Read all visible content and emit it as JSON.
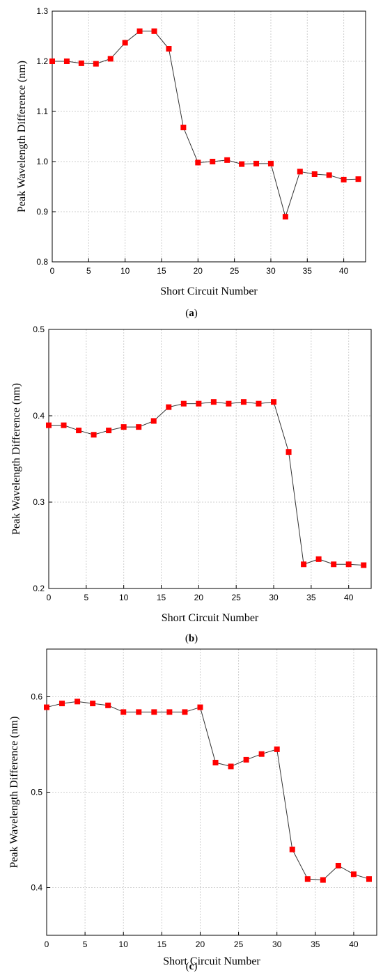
{
  "chart_data": [
    {
      "type": "line",
      "caption": {
        "open": "(",
        "letter": "a",
        "close": ")"
      },
      "xlabel": "Short Circuit Number",
      "ylabel": "Peak Wavelength Difference (nm)",
      "xlim": [
        0,
        43
      ],
      "ylim": [
        0.8,
        1.3
      ],
      "xticks": [
        0,
        5,
        10,
        15,
        20,
        25,
        30,
        35,
        40
      ],
      "yticks": [
        0.8,
        0.9,
        1.0,
        1.1,
        1.2,
        1.3
      ],
      "ytick_decimals": 1,
      "grid": true,
      "series": [
        {
          "x": [
            0,
            2,
            4,
            6,
            8,
            10,
            12,
            14,
            16,
            18,
            20,
            22,
            24,
            26,
            28,
            30,
            32,
            34,
            36,
            38,
            40,
            42
          ],
          "values": [
            1.2,
            1.2,
            1.196,
            1.195,
            1.205,
            1.237,
            1.26,
            1.26,
            1.225,
            1.068,
            0.998,
            1.0,
            1.003,
            0.995,
            0.996,
            0.996,
            0.89,
            0.98,
            0.975,
            0.973,
            0.964,
            0.965
          ]
        }
      ]
    },
    {
      "type": "line",
      "caption": {
        "open": "(",
        "letter": "b",
        "close": ")"
      },
      "xlabel": "Short Circuit Number",
      "ylabel": "Peak Wavelength Difference (nm)",
      "xlim": [
        0,
        43
      ],
      "ylim": [
        0.2,
        0.5
      ],
      "xticks": [
        0,
        5,
        10,
        15,
        20,
        25,
        30,
        35,
        40
      ],
      "yticks": [
        0.2,
        0.3,
        0.4,
        0.5
      ],
      "ytick_decimals": 1,
      "grid": true,
      "series": [
        {
          "x": [
            0,
            2,
            4,
            6,
            8,
            10,
            12,
            14,
            16,
            18,
            20,
            22,
            24,
            26,
            28,
            30,
            32,
            34,
            36,
            38,
            40,
            42
          ],
          "values": [
            0.389,
            0.389,
            0.383,
            0.378,
            0.383,
            0.387,
            0.387,
            0.394,
            0.41,
            0.414,
            0.414,
            0.416,
            0.414,
            0.416,
            0.414,
            0.416,
            0.358,
            0.228,
            0.234,
            0.228,
            0.228,
            0.227
          ]
        }
      ]
    },
    {
      "type": "line",
      "caption": {
        "open": "(",
        "letter": "c",
        "close": ")"
      },
      "xlabel": "Short Circuit Number",
      "ylabel": "Peak Wavelength Difference (nm)",
      "xlim": [
        0,
        43
      ],
      "ylim": [
        0.35,
        0.65
      ],
      "xticks": [
        0,
        5,
        10,
        15,
        20,
        25,
        30,
        35,
        40
      ],
      "yticks": [
        0.4,
        0.5,
        0.6
      ],
      "ytick_decimals": 1,
      "grid": true,
      "series": [
        {
          "x": [
            0,
            2,
            4,
            6,
            8,
            10,
            12,
            14,
            16,
            18,
            20,
            22,
            24,
            26,
            28,
            30,
            32,
            34,
            36,
            38,
            40,
            42
          ],
          "values": [
            0.589,
            0.593,
            0.595,
            0.593,
            0.591,
            0.584,
            0.584,
            0.584,
            0.584,
            0.584,
            0.589,
            0.531,
            0.527,
            0.534,
            0.54,
            0.545,
            0.44,
            0.409,
            0.408,
            0.423,
            0.414,
            0.409
          ]
        }
      ]
    }
  ],
  "colors": {
    "marker": "#ff0000",
    "line": "#333333",
    "grid": "#cfcfcf",
    "axis": "#000000"
  }
}
